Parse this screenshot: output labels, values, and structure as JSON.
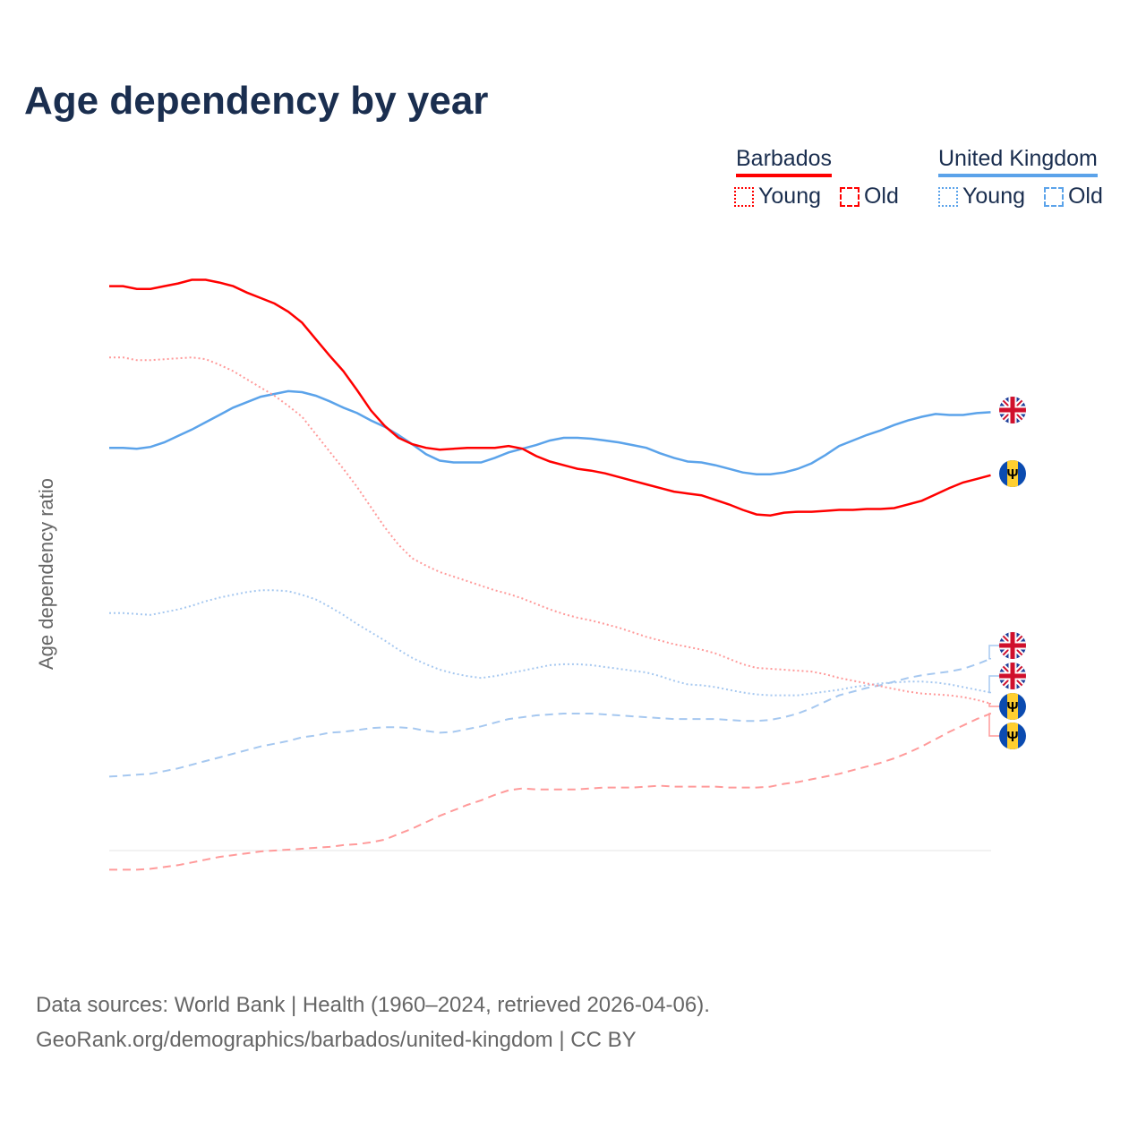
{
  "title": "Age dependency by year",
  "legend": {
    "barbados": "Barbados",
    "uk": "United Kingdom",
    "young": "Young",
    "old": "Old"
  },
  "source_line1": "Data sources: World Bank | Health (1960–2024, retrieved 2026-04-06).",
  "source_line2": "GeoRank.org/demographics/barbados/united-kingdom | CC BY",
  "colors": {
    "barbados": "#ff0000",
    "uk": "#5ba3ea",
    "barbados_light": "#ff9a9a",
    "uk_light": "#a6c8f0"
  },
  "chart_data": {
    "type": "line",
    "title": "Age dependency by year",
    "year_label": "2024",
    "xlabel": "",
    "ylabel": "Age dependency ratio",
    "xlim": [
      1960,
      2024
    ],
    "ylim": [
      0,
      75
    ],
    "x_ticks": [
      1960,
      1970,
      1980,
      1990,
      2000,
      2010,
      2020
    ],
    "y_ticks": [
      10,
      20,
      30,
      40,
      50,
      60,
      70
    ],
    "y_tick_labels": [
      "10%",
      "20%",
      "30%",
      "40%",
      "50%",
      "60%",
      "70%"
    ],
    "x_start": 1960,
    "series": [
      {
        "id": "uk_total",
        "name": "UK",
        "country": "uk",
        "kind": "total",
        "label": "UK",
        "values": [
          54.1,
          54.1,
          54.0,
          54.2,
          54.7,
          55.4,
          56.1,
          56.9,
          57.7,
          58.5,
          59.1,
          59.7,
          60.0,
          60.3,
          60.2,
          59.8,
          59.2,
          58.5,
          57.9,
          57.1,
          56.4,
          55.5,
          54.5,
          53.4,
          52.7,
          52.5,
          52.5,
          52.5,
          53.0,
          53.6,
          54.0,
          54.4,
          54.9,
          55.2,
          55.2,
          55.1,
          54.9,
          54.7,
          54.4,
          54.1,
          53.5,
          53.0,
          52.6,
          52.5,
          52.2,
          51.8,
          51.4,
          51.2,
          51.2,
          51.4,
          51.8,
          52.4,
          53.3,
          54.3,
          54.9,
          55.5,
          56.0,
          56.6,
          57.1,
          57.5,
          57.8,
          57.7,
          57.7,
          57.9,
          58.0
        ]
      },
      {
        "id": "bb_total",
        "name": "Barbados",
        "country": "bb",
        "kind": "total",
        "label": "Barbados",
        "values": [
          71.8,
          71.8,
          71.5,
          71.5,
          71.8,
          72.1,
          72.5,
          72.5,
          72.2,
          71.8,
          71.1,
          70.5,
          69.9,
          69.0,
          67.8,
          66.0,
          64.2,
          62.5,
          60.4,
          58.2,
          56.5,
          55.2,
          54.5,
          54.1,
          53.9,
          54.0,
          54.1,
          54.1,
          54.1,
          54.3,
          54.0,
          53.2,
          52.6,
          52.2,
          51.8,
          51.6,
          51.3,
          50.9,
          50.5,
          50.1,
          49.7,
          49.3,
          49.1,
          48.9,
          48.4,
          47.9,
          47.3,
          46.8,
          46.7,
          47.0,
          47.1,
          47.1,
          47.2,
          47.3,
          47.3,
          47.4,
          47.4,
          47.5,
          47.9,
          48.3,
          49.0,
          49.7,
          50.3,
          50.7,
          51.1
        ]
      },
      {
        "id": "uk_old",
        "name": "UK Old",
        "country": "uk",
        "kind": "old",
        "label": "Old",
        "values": [
          18.1,
          18.2,
          18.3,
          18.4,
          18.7,
          19.0,
          19.4,
          19.8,
          20.2,
          20.6,
          21.0,
          21.4,
          21.7,
          22.0,
          22.4,
          22.6,
          22.9,
          23.0,
          23.2,
          23.4,
          23.5,
          23.5,
          23.4,
          23.1,
          22.9,
          23.0,
          23.3,
          23.6,
          24.0,
          24.4,
          24.6,
          24.8,
          24.9,
          25.0,
          25.0,
          25.0,
          24.9,
          24.8,
          24.7,
          24.6,
          24.5,
          24.4,
          24.4,
          24.4,
          24.4,
          24.3,
          24.2,
          24.2,
          24.3,
          24.6,
          25.0,
          25.6,
          26.3,
          27.0,
          27.4,
          27.8,
          28.1,
          28.5,
          28.9,
          29.2,
          29.4,
          29.6,
          29.9,
          30.4,
          31.0
        ]
      },
      {
        "id": "uk_young",
        "name": "UK Young",
        "country": "uk",
        "kind": "young",
        "label": "Young",
        "values": [
          36.0,
          36.0,
          35.9,
          35.8,
          36.1,
          36.4,
          36.8,
          37.3,
          37.7,
          38.0,
          38.3,
          38.5,
          38.5,
          38.4,
          38.0,
          37.5,
          36.7,
          35.8,
          34.8,
          33.9,
          33.0,
          32.0,
          31.1,
          30.4,
          29.8,
          29.4,
          29.1,
          28.9,
          29.1,
          29.4,
          29.7,
          30.0,
          30.3,
          30.4,
          30.4,
          30.3,
          30.1,
          29.9,
          29.7,
          29.5,
          29.1,
          28.6,
          28.2,
          28.1,
          27.9,
          27.6,
          27.3,
          27.1,
          27.0,
          27.0,
          27.0,
          27.2,
          27.4,
          27.6,
          27.9,
          28.1,
          28.3,
          28.4,
          28.5,
          28.5,
          28.4,
          28.2,
          27.9,
          27.6,
          27.3
        ]
      },
      {
        "id": "bb_young",
        "name": "Barbados Young",
        "country": "bb",
        "kind": "young",
        "label": "Young",
        "values": [
          64.0,
          64.0,
          63.7,
          63.7,
          63.8,
          63.9,
          64.0,
          63.8,
          63.2,
          62.5,
          61.6,
          60.7,
          59.8,
          58.7,
          57.5,
          55.6,
          53.7,
          51.8,
          49.8,
          47.6,
          45.4,
          43.5,
          42.0,
          41.2,
          40.5,
          40.0,
          39.5,
          39.0,
          38.5,
          38.1,
          37.6,
          37.0,
          36.4,
          35.9,
          35.5,
          35.2,
          34.8,
          34.4,
          33.9,
          33.4,
          33.0,
          32.6,
          32.3,
          32.0,
          31.6,
          31.0,
          30.4,
          30.0,
          29.9,
          29.8,
          29.7,
          29.6,
          29.3,
          28.9,
          28.6,
          28.3,
          28.0,
          27.7,
          27.4,
          27.2,
          27.1,
          27.0,
          26.8,
          26.5,
          26.1
        ]
      },
      {
        "id": "bb_old",
        "name": "Barbados Old",
        "country": "bb",
        "kind": "old",
        "label": "Old",
        "values": [
          7.9,
          7.9,
          7.9,
          8.0,
          8.2,
          8.4,
          8.7,
          9.0,
          9.3,
          9.5,
          9.7,
          9.9,
          10.0,
          10.1,
          10.2,
          10.3,
          10.4,
          10.6,
          10.7,
          10.9,
          11.2,
          11.8,
          12.4,
          13.1,
          13.8,
          14.4,
          15.0,
          15.5,
          16.1,
          16.6,
          16.8,
          16.7,
          16.7,
          16.7,
          16.7,
          16.8,
          16.9,
          16.9,
          16.9,
          17.0,
          17.1,
          17.0,
          17.0,
          17.0,
          17.0,
          16.9,
          16.9,
          16.9,
          17.0,
          17.3,
          17.5,
          17.8,
          18.1,
          18.4,
          18.8,
          19.2,
          19.6,
          20.1,
          20.7,
          21.4,
          22.2,
          23.0,
          23.7,
          24.4,
          25.0
        ]
      }
    ]
  }
}
